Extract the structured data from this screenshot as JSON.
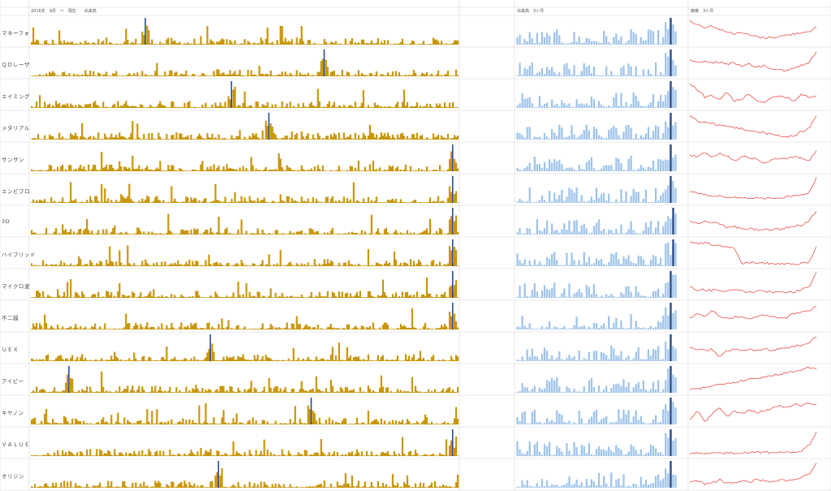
{
  "header": {
    "left": "2016年　9月　〜　現在　　出来高",
    "middle": "出来高　3ヶ月",
    "right": "価格　3ヶ月"
  },
  "colors": {
    "volume_long": "#c8960c",
    "volume_3m": "#9ec3ea",
    "highlight": "#2c4c8c",
    "price": "#e8504a",
    "grid": "#d8d8d8"
  },
  "chart_data": {
    "type": "bar",
    "description_panels": [
      "long_volume_bars",
      "three_month_volume_bars",
      "three_month_price_line"
    ],
    "rows": [
      {
        "name": "マネーフォ",
        "spike_long": 0.27,
        "spike_3m": 0.98,
        "price_trend": [
          0.1,
          0.25,
          0.35,
          0.3,
          0.45,
          0.5,
          0.6,
          0.55,
          0.65,
          0.7,
          0.75,
          0.72,
          0.7,
          0.65,
          0.6,
          0.55,
          0.5,
          0.35
        ]
      },
      {
        "name": "ＱＤレーザ",
        "spike_long": 0.69,
        "spike_3m": 0.98,
        "price_trend": [
          0.4,
          0.5,
          0.45,
          0.5,
          0.45,
          0.55,
          0.5,
          0.6,
          0.55,
          0.65,
          0.6,
          0.7,
          0.75,
          0.8,
          0.7,
          0.6,
          0.5,
          0.1
        ]
      },
      {
        "name": "エイミング",
        "spike_long": 0.47,
        "spike_3m": 0.98,
        "price_trend": [
          0.1,
          0.3,
          0.6,
          0.55,
          0.7,
          0.4,
          0.75,
          0.65,
          0.5,
          0.7,
          0.8,
          0.6,
          0.55,
          0.6,
          0.75,
          0.5,
          0.6,
          0.55
        ]
      },
      {
        "name": "メタリアル",
        "spike_long": 0.56,
        "spike_3m": 0.98,
        "price_trend": [
          0.1,
          0.3,
          0.35,
          0.4,
          0.45,
          0.5,
          0.55,
          0.6,
          0.65,
          0.7,
          0.75,
          0.8,
          0.85,
          0.9,
          0.85,
          0.7,
          0.6,
          0.1
        ]
      },
      {
        "name": "サンサン",
        "spike_long": 0.99,
        "spike_3m": 0.98,
        "price_trend": [
          0.4,
          0.45,
          0.3,
          0.5,
          0.35,
          0.4,
          0.6,
          0.45,
          0.5,
          0.55,
          0.7,
          0.6,
          0.5,
          0.55,
          0.45,
          0.5,
          0.6,
          0.2
        ]
      },
      {
        "name": "エンビプロ",
        "spike_long": 0.99,
        "spike_3m": 0.98,
        "price_trend": [
          0.6,
          0.65,
          0.7,
          0.72,
          0.75,
          0.78,
          0.8,
          0.8,
          0.82,
          0.8,
          0.85,
          0.82,
          0.8,
          0.78,
          0.75,
          0.7,
          0.6,
          0.05
        ]
      },
      {
        "name": "3D",
        "spike_long": 0.99,
        "spike_3m": 0.99,
        "price_trend": [
          0.5,
          0.6,
          0.5,
          0.55,
          0.6,
          0.75,
          0.7,
          0.8,
          0.78,
          0.82,
          0.8,
          0.82,
          0.8,
          0.75,
          0.7,
          0.65,
          0.5,
          0.1
        ]
      },
      {
        "name": "ハイブリッド",
        "spike_long": 0.99,
        "spike_3m": 0.99,
        "price_trend": [
          0.1,
          0.15,
          0.15,
          0.2,
          0.25,
          0.3,
          0.35,
          0.9,
          0.85,
          0.9,
          0.88,
          0.9,
          0.92,
          0.9,
          0.92,
          0.9,
          0.88,
          0.3
        ]
      },
      {
        "name": "マイクロ波",
        "spike_long": 0.99,
        "spike_3m": 0.98,
        "price_trend": [
          0.6,
          0.7,
          0.7,
          0.72,
          0.7,
          0.75,
          0.72,
          0.75,
          0.78,
          0.76,
          0.75,
          0.78,
          0.8,
          0.8,
          0.78,
          0.7,
          0.6,
          0.05
        ]
      },
      {
        "name": "不二越",
        "spike_long": 0.99,
        "spike_3m": 0.98,
        "price_trend": [
          0.6,
          0.4,
          0.55,
          0.3,
          0.5,
          0.6,
          0.55,
          0.5,
          0.6,
          0.55,
          0.45,
          0.5,
          0.6,
          0.55,
          0.4,
          0.35,
          0.3,
          0.1
        ]
      },
      {
        "name": "ＵＥＸ",
        "spike_long": 0.42,
        "spike_3m": 0.98,
        "price_trend": [
          0.5,
          0.55,
          0.6,
          0.55,
          0.85,
          0.6,
          0.55,
          0.6,
          0.55,
          0.6,
          0.55,
          0.6,
          0.55,
          0.5,
          0.45,
          0.4,
          0.3,
          0.1
        ]
      },
      {
        "name": "アイビー",
        "spike_long": 0.09,
        "spike_3m": 0.98,
        "price_trend": [
          0.9,
          0.85,
          0.8,
          0.75,
          0.7,
          0.65,
          0.6,
          0.55,
          0.5,
          0.45,
          0.4,
          0.35,
          0.3,
          0.25,
          0.2,
          0.15,
          0.05,
          0.1
        ]
      },
      {
        "name": "キヤノン",
        "spike_long": 0.66,
        "spike_3m": 0.98,
        "price_trend": [
          0.8,
          0.5,
          0.9,
          0.6,
          0.4,
          0.7,
          0.5,
          0.6,
          0.45,
          0.55,
          0.5,
          0.4,
          0.3,
          0.35,
          0.25,
          0.3,
          0.2,
          0.25
        ]
      },
      {
        "name": "ＶＡＬＵＥ",
        "spike_long": 0.99,
        "spike_3m": 0.98,
        "price_trend": [
          0.9,
          0.9,
          0.9,
          0.89,
          0.89,
          0.88,
          0.88,
          0.88,
          0.87,
          0.87,
          0.86,
          0.86,
          0.85,
          0.85,
          0.84,
          0.8,
          0.6,
          0.1
        ]
      },
      {
        "name": "オリジン",
        "spike_long": 0.44,
        "spike_3m": 0.98,
        "price_trend": [
          0.8,
          0.75,
          0.85,
          0.8,
          0.7,
          0.85,
          0.8,
          0.75,
          0.8,
          0.7,
          0.75,
          0.8,
          0.7,
          0.75,
          0.7,
          0.6,
          0.5,
          0.1
        ]
      }
    ]
  }
}
